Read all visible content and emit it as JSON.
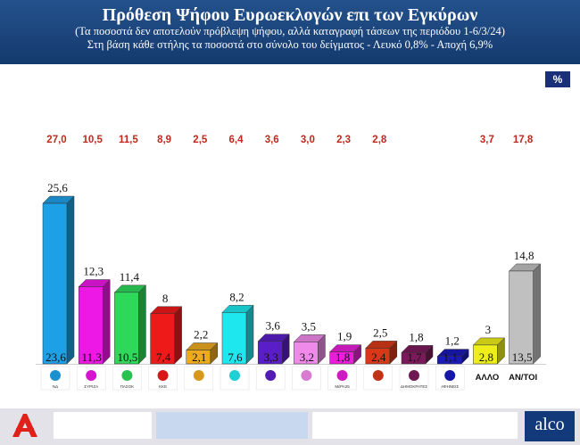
{
  "header": {
    "title": "Πρόθεση Ψήφου Ευρωεκλογών επι των Εγκύρων",
    "subtitle1": "(Τα ποσοστά δεν αποτελούν πρόβλεψη ψήφου, αλλά καταγραφή τάσεων της περιόδου  1-6/3/24)",
    "subtitle2": "Στη βάση κάθε στήλης τα ποσοστά στο σύνολο του δείγματος - Λευκό 0,8% - Αποχή 6,9%"
  },
  "percent_badge": "%",
  "footer": {
    "brand": "alco"
  },
  "chart_data": {
    "type": "bar",
    "categories": [
      "ΝΔ",
      "ΣΥΡΙΖΑ",
      "ΠΑΣΟΚ",
      "ΚΚΕ",
      "Σπαρτιάτες",
      "Ελληνική Λύση",
      "Νίκη",
      "Νέα Αριστερά",
      "ΜέΡΑ25",
      "Κ",
      "ΔΗΜΟΚΡΑΤΕΣ",
      "ΑΦΗΝΕΙΣ",
      "ΑΛΛΟ",
      "ΑΝ/ΤΟΙ"
    ],
    "category_labels": [
      "",
      "",
      "",
      "",
      "",
      "",
      "",
      "",
      "",
      "",
      "",
      "",
      "ΑΛΛΟ",
      "ΑΝ/ΤΟΙ"
    ],
    "colors": [
      "#1ea0e6",
      "#ee18e6",
      "#2ed85a",
      "#ee1a1a",
      "#eeaa1e",
      "#1ee8ee",
      "#5a1ec8",
      "#f08aea",
      "#e81ed8",
      "#d83818",
      "#7a1a5a",
      "#1a1ab8",
      "#eeee1a",
      "#c0c0c0"
    ],
    "values": [
      "25,6",
      "12,3",
      "11,4",
      "8",
      "2,2",
      "8,2",
      "3,6",
      "3,5",
      "1,9",
      "2,5",
      "1,8",
      "1,2",
      "3",
      "14,8"
    ],
    "values_numeric": [
      25.6,
      12.3,
      11.4,
      8,
      2.2,
      8.2,
      3.6,
      3.5,
      1.9,
      2.5,
      1.8,
      1.2,
      3,
      14.8
    ],
    "base_values": [
      "23,6",
      "11,3",
      "10,5",
      "7,4",
      "2,1",
      "7,6",
      "3,3",
      "3,2",
      "1,8",
      "2,4",
      "1,7",
      "1,1",
      "2,8",
      "13,5"
    ],
    "previous_values": [
      "27,0",
      "10,5",
      "11,5",
      "8,9",
      "2,5",
      "6,4",
      "3,6",
      "3,0",
      "2,3",
      "2,8",
      "",
      "",
      "3,7",
      "17,8"
    ],
    "logo_texts": [
      "ΝΔ",
      "ΣΥΡΙΖΑ",
      "ΠΑΣΟΚ",
      "ΚΚΕ",
      "",
      "",
      "",
      "",
      "ΜέΡΑ25",
      "",
      "ΔΗΜΟΚΡΑΤΕΣ",
      "ΑΦΗΝΕΙΣ",
      "",
      ""
    ],
    "ylim": [
      0,
      27
    ]
  }
}
